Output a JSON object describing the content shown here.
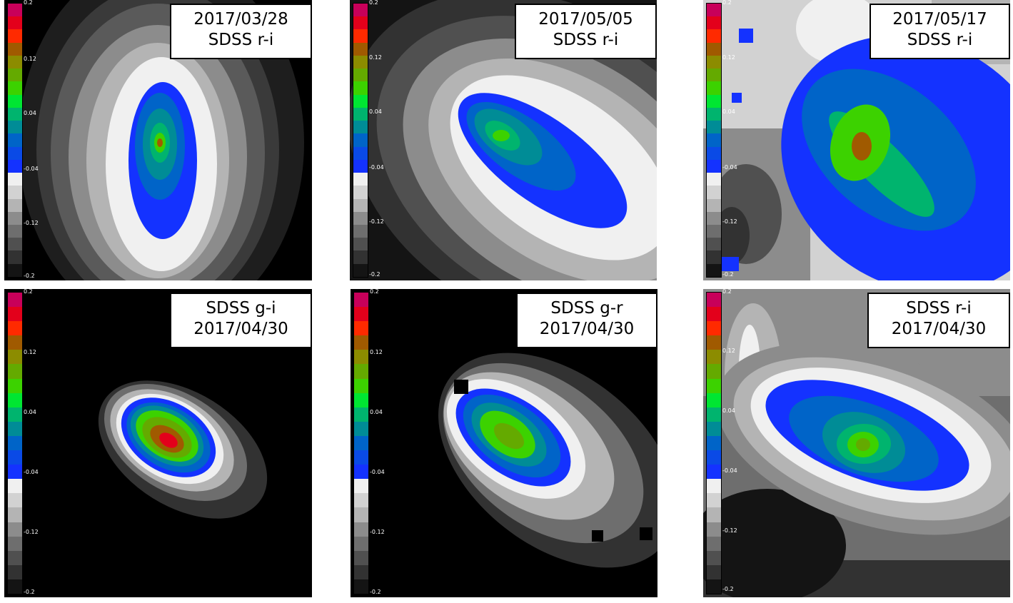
{
  "colorbar": {
    "ticks": [
      "0.2",
      "0.12",
      "0.04",
      "-0.04",
      "-0.12",
      "-0.2"
    ],
    "colors": [
      "#c8005a",
      "#e3001b",
      "#ff2a00",
      "#a05a00",
      "#8c8c00",
      "#64aa00",
      "#3cd200",
      "#00e632",
      "#00b46e",
      "#008c96",
      "#0064c8",
      "#0a4ae6",
      "#1432ff",
      "#f0f0f0",
      "#d2d2d2",
      "#b4b4b4",
      "#8c8c8c",
      "#6e6e6e",
      "#505050",
      "#323232",
      "#141414"
    ]
  },
  "panels": [
    {
      "line1": "2017/03/28",
      "line2": "SDSS r-i"
    },
    {
      "line1": "2017/05/05",
      "line2": "SDSS r-i"
    },
    {
      "line1": "2017/05/17",
      "line2": "SDSS r-i"
    },
    {
      "line1": "SDSS g-i",
      "line2": "2017/04/30"
    },
    {
      "line1": "SDSS g-r",
      "line2": "2017/04/30"
    },
    {
      "line1": "SDSS r-i",
      "line2": "2017/04/30"
    }
  ]
}
